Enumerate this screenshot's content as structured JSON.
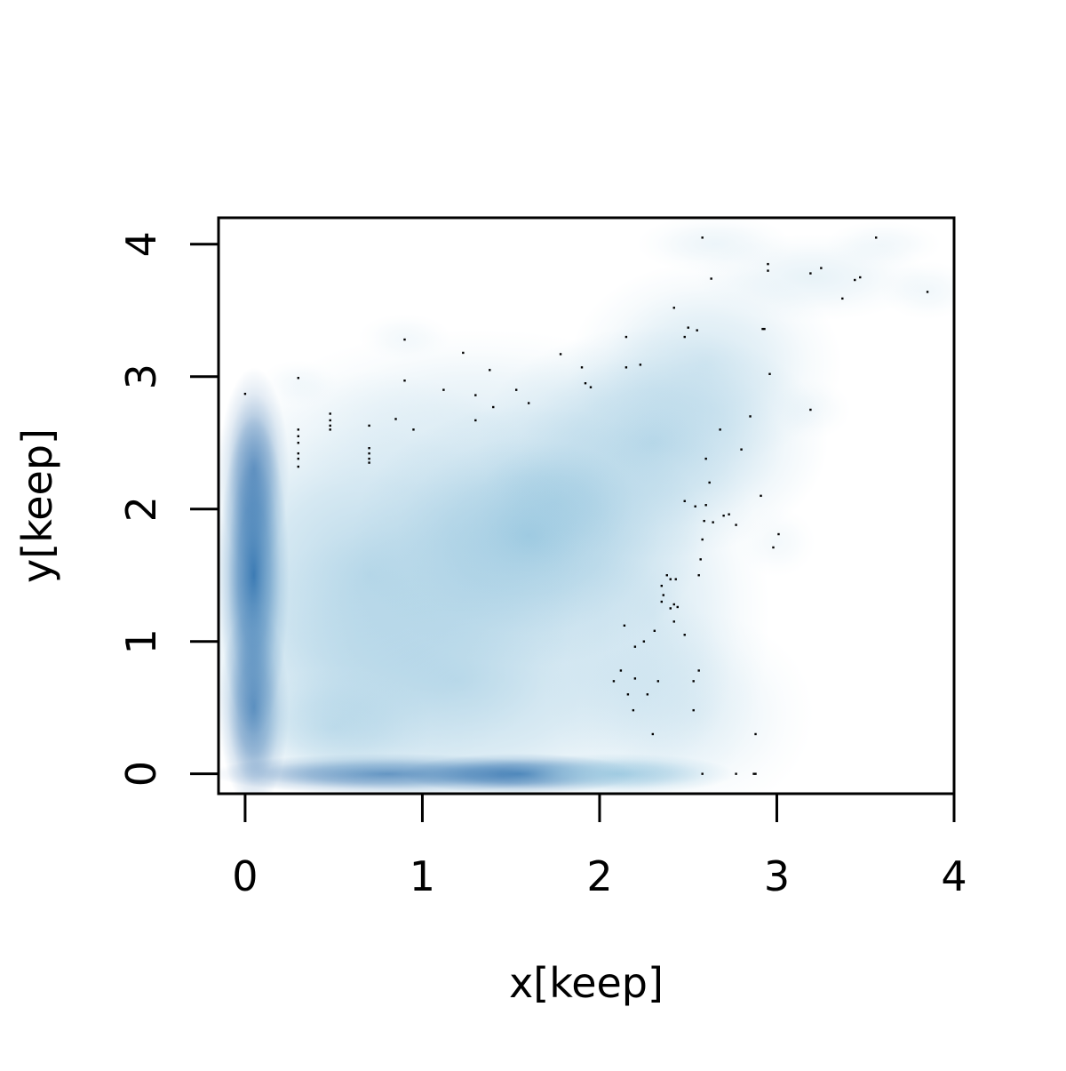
{
  "chart_data": {
    "type": "smoothScatter",
    "title": "",
    "xlabel": "x[keep]",
    "ylabel": "y[keep]",
    "xlim": [
      -0.15,
      4.0
    ],
    "ylim": [
      -0.15,
      4.2
    ],
    "x_ticks": [
      0,
      1,
      2,
      3,
      4
    ],
    "y_ticks": [
      0,
      1,
      2,
      3,
      4
    ],
    "x_tick_labels": [
      "0",
      "1",
      "2",
      "3",
      "4"
    ],
    "y_tick_labels": [
      "0",
      "1",
      "2",
      "3",
      "4"
    ],
    "grid": false,
    "colors": {
      "density_low": "#ffffff",
      "density_mid": "#9ecae1",
      "density_high": "#08519c",
      "points": "#000000",
      "axis": "#000000"
    },
    "density_blobs": [
      {
        "x": 0.05,
        "y": 1.5,
        "sx": 0.09,
        "sy": 0.55,
        "w": 1.0
      },
      {
        "x": 0.05,
        "y": 0.5,
        "sx": 0.09,
        "sy": 0.35,
        "w": 0.7
      },
      {
        "x": 0.05,
        "y": 2.3,
        "sx": 0.09,
        "sy": 0.35,
        "w": 0.55
      },
      {
        "x": 0.8,
        "y": 0.0,
        "sx": 0.45,
        "sy": 0.07,
        "w": 0.7
      },
      {
        "x": 1.55,
        "y": 0.0,
        "sx": 0.3,
        "sy": 0.07,
        "w": 0.85
      },
      {
        "x": 2.1,
        "y": 0.0,
        "sx": 0.3,
        "sy": 0.07,
        "w": 0.4
      },
      {
        "x": 1.6,
        "y": 1.8,
        "sx": 0.45,
        "sy": 0.45,
        "w": 0.45
      },
      {
        "x": 1.75,
        "y": 2.05,
        "sx": 0.2,
        "sy": 0.2,
        "w": 0.25
      },
      {
        "x": 0.7,
        "y": 1.5,
        "sx": 0.55,
        "sy": 0.7,
        "w": 0.3
      },
      {
        "x": 1.2,
        "y": 0.7,
        "sx": 0.7,
        "sy": 0.55,
        "w": 0.27
      },
      {
        "x": 2.3,
        "y": 2.5,
        "sx": 0.45,
        "sy": 0.4,
        "w": 0.3
      },
      {
        "x": 2.6,
        "y": 3.1,
        "sx": 0.35,
        "sy": 0.35,
        "w": 0.18
      },
      {
        "x": 1.3,
        "y": 2.7,
        "sx": 0.55,
        "sy": 0.3,
        "w": 0.12
      },
      {
        "x": 2.3,
        "y": 1.2,
        "sx": 0.3,
        "sy": 0.7,
        "w": 0.16
      },
      {
        "x": 2.55,
        "y": 0.45,
        "sx": 0.3,
        "sy": 0.35,
        "w": 0.1
      },
      {
        "x": 0.5,
        "y": 0.35,
        "sx": 0.25,
        "sy": 0.2,
        "w": 0.2
      },
      {
        "x": 3.2,
        "y": 3.75,
        "sx": 0.3,
        "sy": 0.15,
        "w": 0.1
      },
      {
        "x": 2.65,
        "y": 4.0,
        "sx": 0.2,
        "sy": 0.1,
        "w": 0.08
      },
      {
        "x": 3.6,
        "y": 4.0,
        "sx": 0.15,
        "sy": 0.08,
        "w": 0.06
      },
      {
        "x": 3.85,
        "y": 3.65,
        "sx": 0.12,
        "sy": 0.1,
        "w": 0.06
      },
      {
        "x": 3.2,
        "y": 2.75,
        "sx": 0.1,
        "sy": 0.1,
        "w": 0.05
      },
      {
        "x": 3.0,
        "y": 1.75,
        "sx": 0.1,
        "sy": 0.12,
        "w": 0.05
      },
      {
        "x": 0.3,
        "y": 2.95,
        "sx": 0.1,
        "sy": 0.08,
        "w": 0.05
      },
      {
        "x": 0.9,
        "y": 3.3,
        "sx": 0.12,
        "sy": 0.08,
        "w": 0.05
      }
    ],
    "outlier_points": [
      [
        0.0,
        2.87
      ],
      [
        0.3,
        2.99
      ],
      [
        0.3,
        2.6
      ],
      [
        0.3,
        2.55
      ],
      [
        0.3,
        2.5
      ],
      [
        0.3,
        2.42
      ],
      [
        0.3,
        2.38
      ],
      [
        0.3,
        2.32
      ],
      [
        0.48,
        2.72
      ],
      [
        0.48,
        2.67
      ],
      [
        0.48,
        2.63
      ],
      [
        0.48,
        2.6
      ],
      [
        0.7,
        2.63
      ],
      [
        0.7,
        2.46
      ],
      [
        0.7,
        2.42
      ],
      [
        0.7,
        2.38
      ],
      [
        0.7,
        2.35
      ],
      [
        0.85,
        2.68
      ],
      [
        0.9,
        3.28
      ],
      [
        0.9,
        2.97
      ],
      [
        0.95,
        2.6
      ],
      [
        1.12,
        2.9
      ],
      [
        1.23,
        3.18
      ],
      [
        1.3,
        2.86
      ],
      [
        1.3,
        2.67
      ],
      [
        1.38,
        3.05
      ],
      [
        1.4,
        2.77
      ],
      [
        1.53,
        2.9
      ],
      [
        1.6,
        2.8
      ],
      [
        1.78,
        3.17
      ],
      [
        1.9,
        3.07
      ],
      [
        1.92,
        2.95
      ],
      [
        1.95,
        2.92
      ],
      [
        2.15,
        3.3
      ],
      [
        2.15,
        3.07
      ],
      [
        2.23,
        3.09
      ],
      [
        2.42,
        3.52
      ],
      [
        2.48,
        3.3
      ],
      [
        2.5,
        3.37
      ],
      [
        2.55,
        3.35
      ],
      [
        2.58,
        4.05
      ],
      [
        2.63,
        3.74
      ],
      [
        2.92,
        3.36
      ],
      [
        2.93,
        3.36
      ],
      [
        2.95,
        3.85
      ],
      [
        2.95,
        3.8
      ],
      [
        2.96,
        3.02
      ],
      [
        3.19,
        3.78
      ],
      [
        3.25,
        3.82
      ],
      [
        3.37,
        3.59
      ],
      [
        3.44,
        3.73
      ],
      [
        3.47,
        3.75
      ],
      [
        3.56,
        4.05
      ],
      [
        3.85,
        3.64
      ],
      [
        3.19,
        2.75
      ],
      [
        2.85,
        2.7
      ],
      [
        2.68,
        2.6
      ],
      [
        2.8,
        2.45
      ],
      [
        2.6,
        2.38
      ],
      [
        2.62,
        2.2
      ],
      [
        2.48,
        2.06
      ],
      [
        2.54,
        2.02
      ],
      [
        2.6,
        2.03
      ],
      [
        2.91,
        2.1
      ],
      [
        2.59,
        1.91
      ],
      [
        2.64,
        1.9
      ],
      [
        2.7,
        1.95
      ],
      [
        2.73,
        1.96
      ],
      [
        2.77,
        1.88
      ],
      [
        2.58,
        1.77
      ],
      [
        3.01,
        1.81
      ],
      [
        2.98,
        1.71
      ],
      [
        2.57,
        1.62
      ],
      [
        2.56,
        1.5
      ],
      [
        2.38,
        1.5
      ],
      [
        2.4,
        1.47
      ],
      [
        2.43,
        1.47
      ],
      [
        2.35,
        1.42
      ],
      [
        2.36,
        1.35
      ],
      [
        2.35,
        1.3
      ],
      [
        2.42,
        1.28
      ],
      [
        2.44,
        1.26
      ],
      [
        2.4,
        1.25
      ],
      [
        2.42,
        1.15
      ],
      [
        2.14,
        1.12
      ],
      [
        2.31,
        1.08
      ],
      [
        2.48,
        1.05
      ],
      [
        2.25,
        1.0
      ],
      [
        2.2,
        0.96
      ],
      [
        2.12,
        0.78
      ],
      [
        2.2,
        0.72
      ],
      [
        2.56,
        0.78
      ],
      [
        2.08,
        0.7
      ],
      [
        2.33,
        0.7
      ],
      [
        2.53,
        0.7
      ],
      [
        2.16,
        0.6
      ],
      [
        2.27,
        0.6
      ],
      [
        2.19,
        0.48
      ],
      [
        2.53,
        0.48
      ],
      [
        2.3,
        0.3
      ],
      [
        2.88,
        0.3
      ],
      [
        2.58,
        0.0
      ],
      [
        2.77,
        0.0
      ],
      [
        2.87,
        0.0
      ],
      [
        2.88,
        0.0
      ]
    ]
  }
}
